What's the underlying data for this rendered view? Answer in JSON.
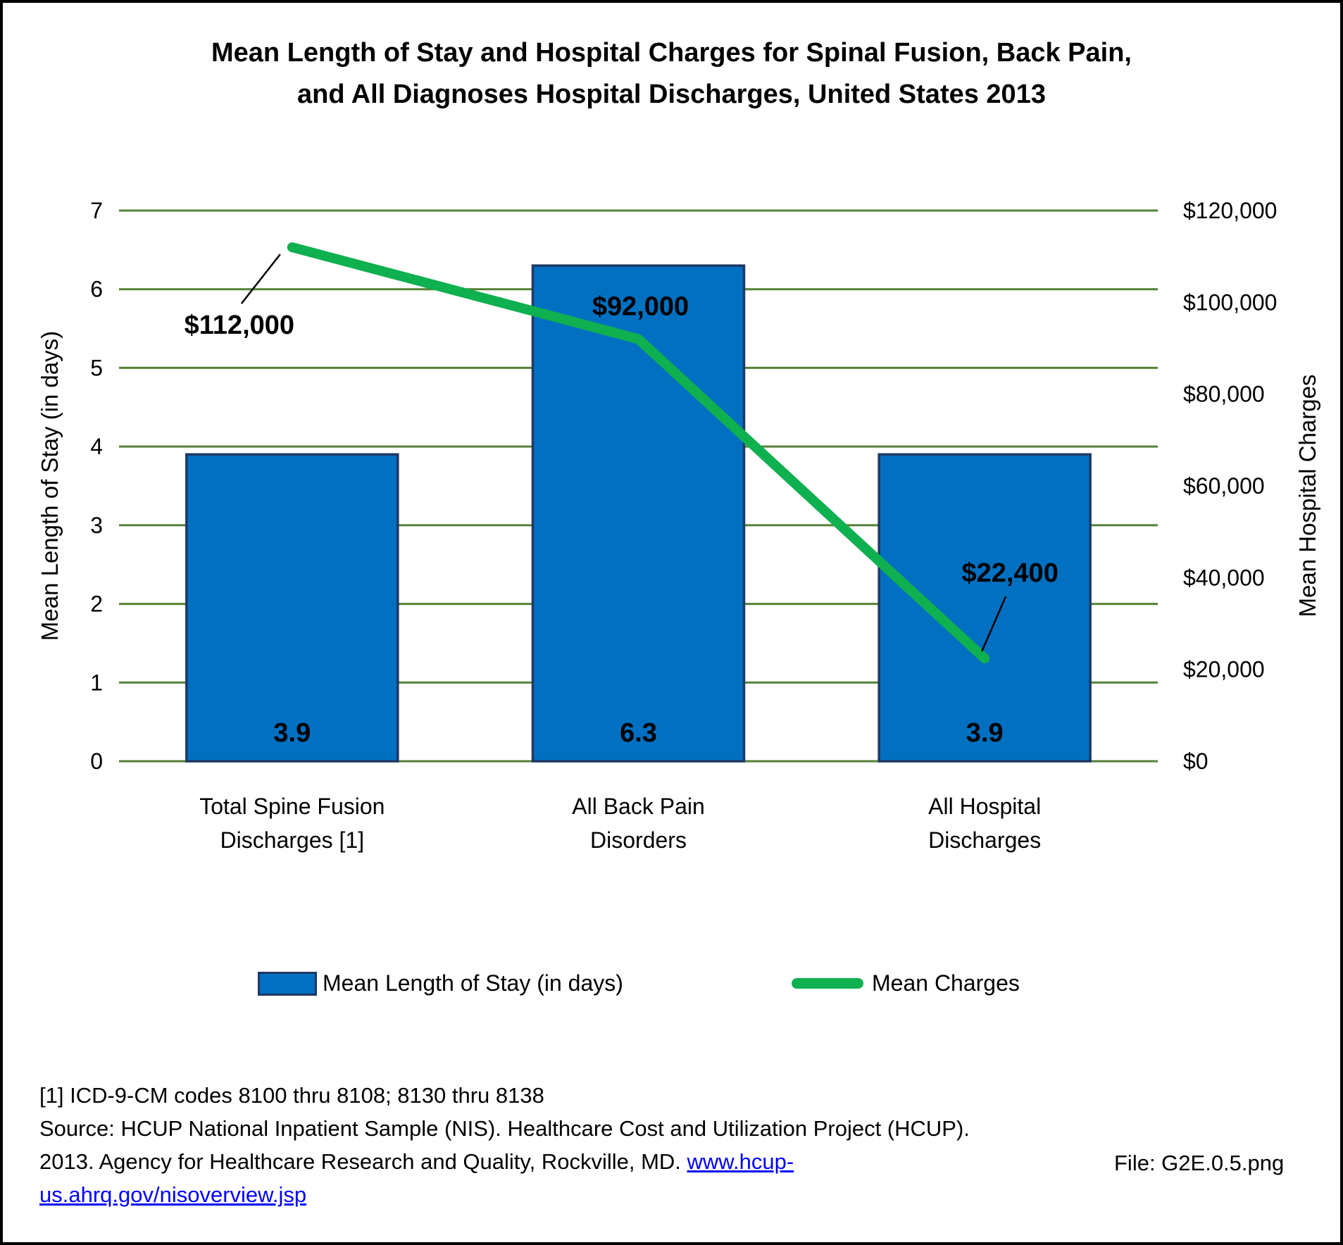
{
  "page": {
    "title_line1": "Mean Length of Stay and Hospital Charges for Spinal Fusion, Back Pain,",
    "title_line2": "and All Diagnoses Hospital Discharges, United States 2013",
    "file_label": "File: G2E.0.5.png"
  },
  "footnotes": {
    "line1": "[1] ICD-9-CM codes 8100 thru 8108; 8130 thru 8138",
    "line2": "Source: HCUP National Inpatient Sample (NIS). Healthcare Cost and Utilization Project (HCUP).",
    "line3_prefix": "2013. Agency for Healthcare Research and Quality, Rockville, MD. ",
    "link_line1": "www.hcup-",
    "link_line2": "us.ahrq.gov/nisoverview.jsp"
  },
  "chart_data": {
    "type": "combo-bar-line",
    "title": "Mean Length of Stay and Hospital Charges for Spinal Fusion, Back Pain, and All Diagnoses Hospital Discharges, United States 2013",
    "categories": [
      [
        "Total Spine Fusion",
        "Discharges [1]"
      ],
      [
        "All Back Pain",
        "Disorders"
      ],
      [
        "All Hospital",
        "Discharges"
      ]
    ],
    "series": [
      {
        "name": "Mean Length of Stay (in days)",
        "type": "bar",
        "axis": "left",
        "values": [
          3.9,
          6.3,
          3.9
        ],
        "value_labels": [
          "3.9",
          "6.3",
          "3.9"
        ],
        "color": "#0170C1",
        "border_color": "#1F3864"
      },
      {
        "name": "Mean Charges",
        "type": "line",
        "axis": "right",
        "values": [
          112000,
          92000,
          22400
        ],
        "value_labels": [
          "$112,000",
          "$92,000",
          "$22,400"
        ],
        "color": "#0FB04F"
      }
    ],
    "left_axis": {
      "title": "Mean Length of Stay (in days)",
      "min": 0,
      "max": 7,
      "step": 1
    },
    "right_axis": {
      "title": "Mean Hospital Charges",
      "min": 0,
      "max": 120000,
      "step": 20000,
      "format": "$#,##0"
    },
    "gridlines": "horizontal",
    "gridline_color": "#538135",
    "legend": [
      "Mean Length of Stay (in days)",
      "Mean Charges"
    ],
    "legend_position": "bottom"
  }
}
